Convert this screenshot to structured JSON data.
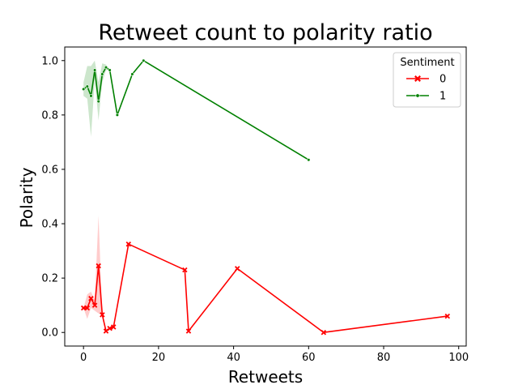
{
  "chart_data": {
    "type": "line",
    "title": "Retweet count to polarity ratio",
    "xlabel": "Retweets",
    "ylabel": "Polarity",
    "xlim": [
      -5,
      102
    ],
    "ylim": [
      -0.05,
      1.05
    ],
    "xticks": [
      0,
      20,
      40,
      60,
      80,
      100
    ],
    "yticks": [
      0.0,
      0.2,
      0.4,
      0.6,
      0.8,
      1.0
    ],
    "grid": false,
    "legend": {
      "title": "Sentiment",
      "placement": "top-right"
    },
    "series": [
      {
        "name": "0",
        "color": "#ff0000",
        "marker": "x",
        "x": [
          0,
          1,
          2,
          3,
          4,
          5,
          6,
          7,
          8,
          12,
          27,
          28,
          41,
          64,
          97
        ],
        "y": [
          0.09,
          0.09,
          0.125,
          0.1,
          0.245,
          0.065,
          0.005,
          0.015,
          0.02,
          0.325,
          0.23,
          0.005,
          0.235,
          0.0,
          0.06
        ],
        "ci_lower": [
          0.09,
          0.05,
          0.09,
          0.08,
          0.07,
          0.065,
          0.005,
          0.015,
          0.02,
          0.325,
          0.23,
          0.005,
          0.235,
          0.0,
          0.06
        ],
        "ci_upper": [
          0.09,
          0.14,
          0.15,
          0.12,
          0.43,
          0.065,
          0.005,
          0.015,
          0.02,
          0.325,
          0.23,
          0.005,
          0.235,
          0.0,
          0.06
        ]
      },
      {
        "name": "1",
        "color": "#008000",
        "marker": "o",
        "x": [
          0,
          1,
          2,
          3,
          4,
          5,
          6,
          7,
          9,
          13,
          16,
          60
        ],
        "y": [
          0.895,
          0.905,
          0.87,
          0.965,
          0.85,
          0.95,
          0.975,
          0.965,
          0.8,
          0.95,
          1.0,
          0.635
        ],
        "ci_lower": [
          0.87,
          0.86,
          0.72,
          0.93,
          0.78,
          0.92,
          0.965,
          0.965,
          0.8,
          0.95,
          1.0,
          0.635
        ],
        "ci_upper": [
          0.92,
          0.98,
          0.98,
          1.0,
          0.92,
          0.99,
          0.985,
          0.965,
          0.8,
          0.95,
          1.0,
          0.635
        ]
      }
    ]
  }
}
